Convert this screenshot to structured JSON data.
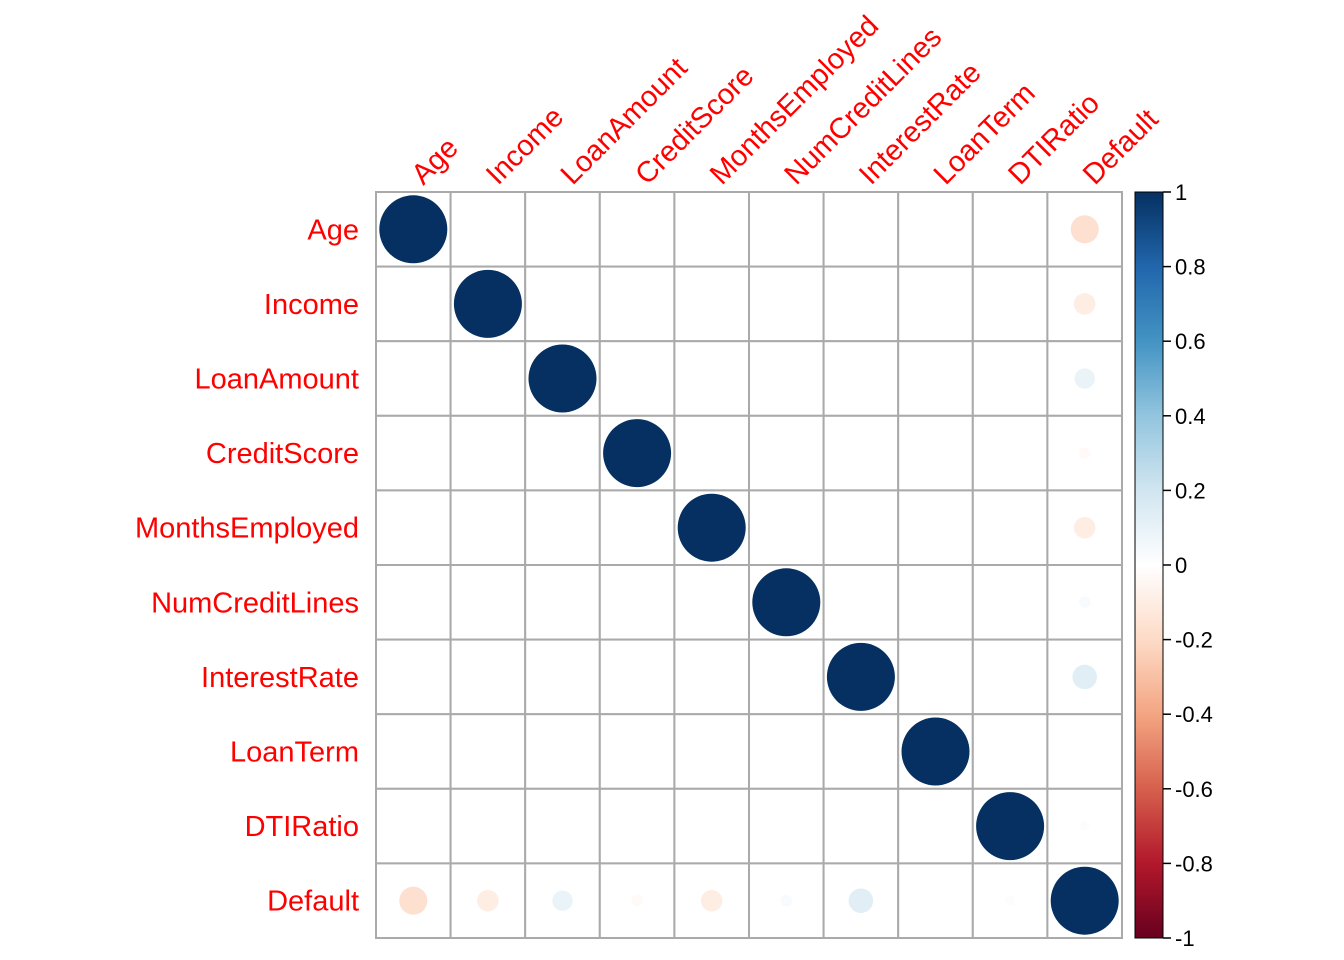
{
  "chart_data": {
    "type": "heatmap",
    "style": "correlation matrix, circle glyphs",
    "variables": [
      "Age",
      "Income",
      "LoanAmount",
      "CreditScore",
      "MonthsEmployed",
      "NumCreditLines",
      "InterestRate",
      "LoanTerm",
      "DTIRatio",
      "Default"
    ],
    "matrix": [
      [
        1,
        0,
        0,
        0,
        0,
        0,
        0,
        0,
        0,
        -0.17
      ],
      [
        0,
        1,
        0,
        0,
        0,
        0,
        0,
        0,
        0,
        -0.1
      ],
      [
        0,
        0,
        1,
        0,
        0,
        0,
        0,
        0,
        0,
        0.09
      ],
      [
        0,
        0,
        0,
        1,
        0,
        0,
        0,
        0,
        0,
        -0.03
      ],
      [
        0,
        0,
        0,
        0,
        1,
        0,
        0,
        0,
        0,
        -0.1
      ],
      [
        0,
        0,
        0,
        0,
        0,
        1,
        0,
        0,
        0,
        0.03
      ],
      [
        0,
        0,
        0,
        0,
        0,
        0,
        1,
        0,
        0,
        0.13
      ],
      [
        0,
        0,
        0,
        0,
        0,
        0,
        0,
        1,
        0,
        0
      ],
      [
        0,
        0,
        0,
        0,
        0,
        0,
        0,
        0,
        1,
        0.02
      ],
      [
        -0.17,
        -0.1,
        0.09,
        -0.03,
        -0.1,
        0.03,
        0.13,
        0,
        0.02,
        1
      ]
    ],
    "colorbar": {
      "range": [
        -1,
        1
      ],
      "ticks": [
        "1",
        "0.8",
        "0.6",
        "0.4",
        "0.2",
        "0",
        "-0.2",
        "-0.4",
        "-0.6",
        "-0.8",
        "-1"
      ],
      "colors": [
        "#67001F",
        "#B2182B",
        "#D6604D",
        "#F4A582",
        "#FDDBC7",
        "#FFFFFF",
        "#D1E5F0",
        "#92C5DE",
        "#4393C3",
        "#2166AC",
        "#053061"
      ]
    },
    "label_color": "#FF0000",
    "grid_color": "#AAAAAA",
    "grid": true,
    "legend": "right"
  }
}
